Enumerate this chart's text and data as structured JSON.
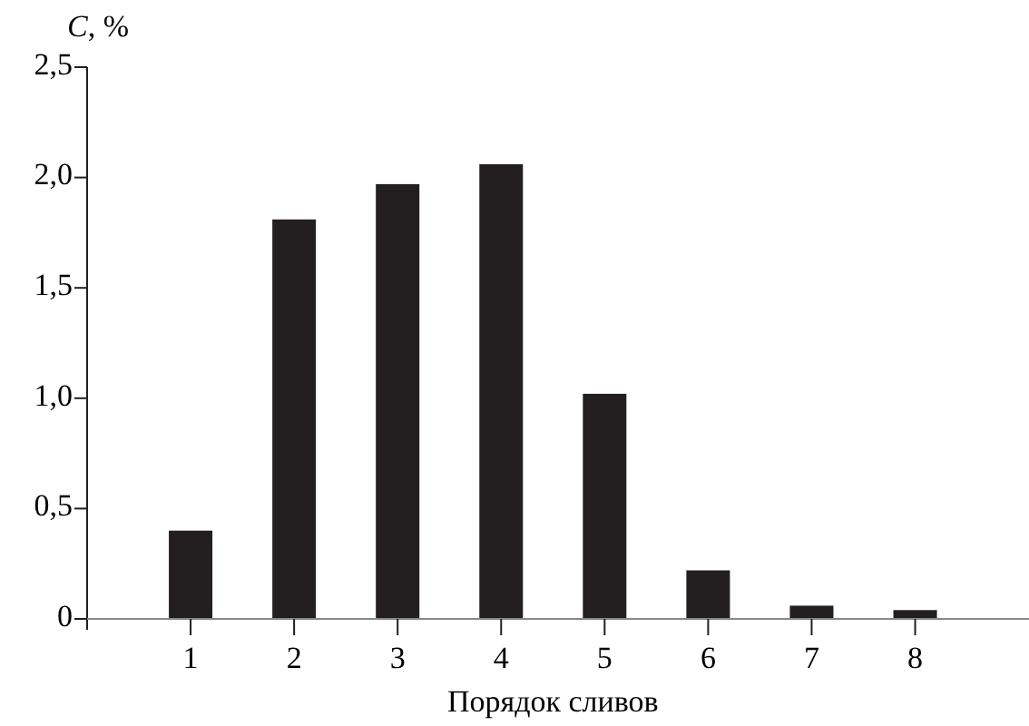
{
  "chart_data": {
    "type": "bar",
    "ylabel": "C, %",
    "xlabel": "Порядок сливов",
    "categories": [
      "1",
      "2",
      "3",
      "4",
      "5",
      "6",
      "7",
      "8"
    ],
    "values": [
      0.4,
      1.81,
      1.97,
      2.06,
      1.02,
      0.22,
      0.06,
      0.04
    ],
    "color": "#231f20",
    "ylim": [
      0,
      2.5
    ],
    "yticks": [
      {
        "value": 0,
        "label": "0"
      },
      {
        "value": 0.5,
        "label": "0,5"
      },
      {
        "value": 1,
        "label": "1,0"
      },
      {
        "value": 1.5,
        "label": "1,5"
      },
      {
        "value": 2,
        "label": "2,0"
      },
      {
        "value": 2.5,
        "label": "2,5"
      }
    ],
    "grid": false
  }
}
